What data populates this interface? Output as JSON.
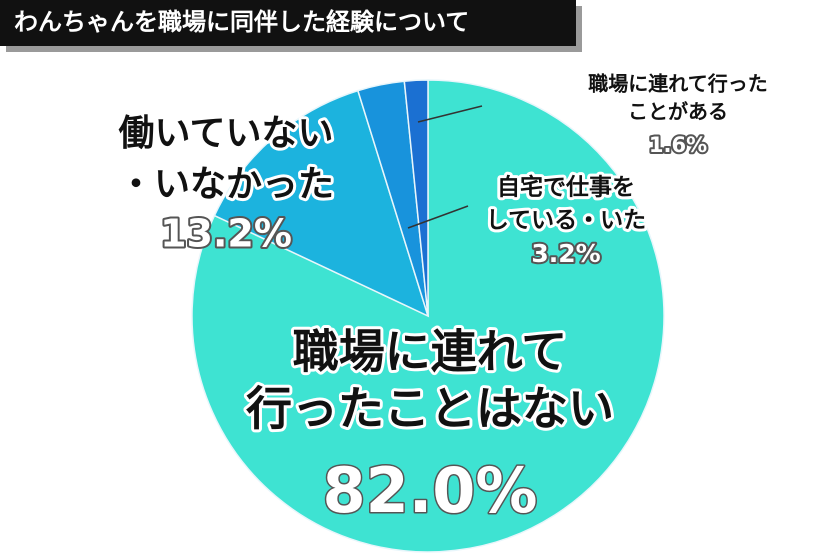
{
  "chart_data": {
    "type": "pie",
    "title": "わんちゃんを職場に同伴した経験について",
    "categories": [
      [
        "職場に連れて",
        "行ったことはない"
      ],
      [
        "働いていない",
        "・いなかった"
      ],
      [
        "自宅で仕事を",
        "している・いた"
      ],
      [
        "職場に連れて行った",
        "ことがある"
      ]
    ],
    "values": [
      82.0,
      13.2,
      3.2,
      1.6
    ],
    "value_labels": [
      "82.0%",
      "13.2%",
      "3.2%",
      "1.6%"
    ],
    "colors": [
      "#3ee3d2",
      "#1cb3de",
      "#1893dc",
      "#1b70d2"
    ]
  }
}
